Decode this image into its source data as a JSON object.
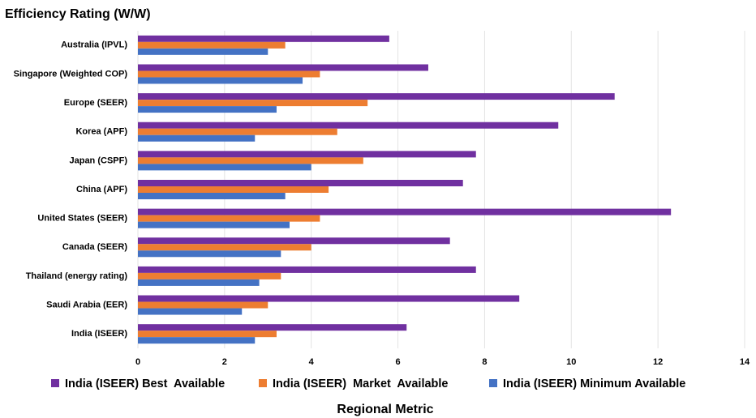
{
  "chart_data": {
    "type": "bar",
    "orientation": "horizontal",
    "title": "Efficiency Rating (W/W)",
    "x_label": "Regional Metric",
    "categories": [
      "Australia (IPVL)",
      "Singapore (Weighted COP)",
      "Europe (SEER)",
      "Korea (APF)",
      "Japan (CSPF)",
      "China (APF)",
      "United States (SEER)",
      "Canada (SEER)",
      "Thailand (energy rating)",
      "Saudi Arabia (EER)",
      "India (ISEER)"
    ],
    "series": [
      {
        "name": "India (ISEER) Best  Available",
        "color": "#7030a0",
        "values": [
          5.8,
          6.7,
          11.0,
          9.7,
          7.8,
          7.5,
          12.3,
          7.2,
          7.8,
          8.8,
          6.2
        ]
      },
      {
        "name": "India (ISEER)  Market  Available",
        "color": "#ed7d31",
        "values": [
          3.4,
          4.2,
          5.3,
          4.6,
          5.2,
          4.4,
          4.2,
          4.0,
          3.3,
          3.0,
          3.2
        ]
      },
      {
        "name": "India (ISEER) Minimum Available",
        "color": "#4472c4",
        "values": [
          3.0,
          3.8,
          3.2,
          2.7,
          4.0,
          3.4,
          3.5,
          3.3,
          2.8,
          2.4,
          2.7
        ]
      }
    ],
    "xlim": [
      0,
      14
    ],
    "xticks": [
      0,
      2,
      4,
      6,
      8,
      10,
      12,
      14
    ],
    "grid": true,
    "legend": "bottom"
  }
}
